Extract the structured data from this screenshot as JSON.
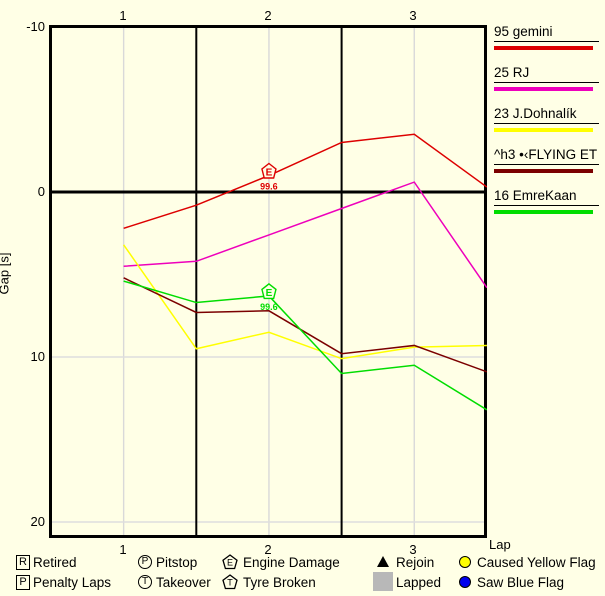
{
  "page": {
    "background": "#ffffe6"
  },
  "axes": {
    "ylabel": "Gap [s]",
    "xlabel": "Lap",
    "x_ticks": [
      "1",
      "2",
      "3"
    ],
    "y_ticks": [
      "-10",
      "0",
      "10",
      "20"
    ]
  },
  "chart_data": {
    "type": "line",
    "title": "",
    "xlabel": "Lap",
    "ylabel": "Gap [s]",
    "x_tick_values": [
      1,
      2,
      3
    ],
    "lap_boundaries": [
      1.5,
      2.5
    ],
    "ylim": [
      -10,
      21
    ],
    "y_inverted": true,
    "grid": "on",
    "gray_gridline_gaps": [
      10,
      20
    ],
    "zero_line_gap": 0,
    "x": [
      1,
      1.5,
      2,
      2.5,
      3,
      3.5
    ],
    "series": [
      {
        "name": "95 gemini",
        "color": "#dd0000",
        "values": [
          2.2,
          0.8,
          -1.0,
          -3.0,
          -3.5,
          -0.3
        ]
      },
      {
        "name": "25 RJ",
        "color": "#ee00bb",
        "values": [
          4.5,
          4.2,
          2.6,
          1.0,
          -0.6,
          5.8
        ]
      },
      {
        "name": "23 J.Dohnalík",
        "color": "#ffff00",
        "values": [
          3.2,
          9.5,
          8.5,
          10.1,
          9.4,
          9.3
        ]
      },
      {
        "name": "^h3 •‹FLYING ET",
        "color": "#7b0000",
        "values": [
          5.2,
          7.3,
          7.2,
          9.8,
          9.3,
          10.9
        ]
      },
      {
        "name": "16 EmreKaan",
        "color": "#00dd00",
        "values": [
          5.4,
          6.7,
          6.3,
          11.0,
          10.5,
          13.2
        ]
      }
    ],
    "markers": [
      {
        "series": 0,
        "x": 2,
        "y": -1.0,
        "symbol": "engine-damage",
        "letter": "E",
        "label": "99.6"
      },
      {
        "series": 4,
        "x": 2,
        "y": 6.3,
        "symbol": "engine-damage",
        "letter": "E",
        "label": "99.6"
      }
    ],
    "legend_position": "top-right"
  },
  "symbol_legend": {
    "retired": {
      "letter": "R",
      "label": "Retired"
    },
    "pitstop": {
      "letter": "P",
      "label": "Pitstop"
    },
    "engine": {
      "letter": "E",
      "label": "Engine Damage"
    },
    "rejoin": {
      "label": "Rejoin"
    },
    "yellow_flag": {
      "label": "Caused Yellow Flag",
      "color": "#ffff00"
    },
    "penalty": {
      "letter": "P",
      "label": "Penalty Laps"
    },
    "takeover": {
      "letter": "T",
      "label": "Takeover"
    },
    "tyre": {
      "letter": "T",
      "label": "Tyre Broken"
    },
    "lapped": {
      "label": "Lapped",
      "color": "#b8b8b8"
    },
    "blue_flag": {
      "label": "Saw Blue Flag",
      "color": "#0000ee"
    }
  }
}
